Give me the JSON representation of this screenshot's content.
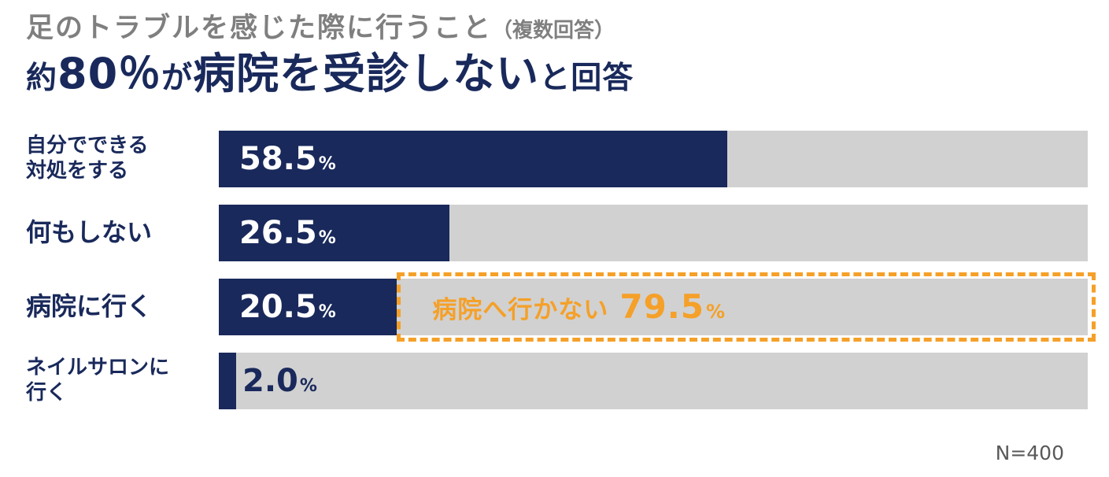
{
  "header": {
    "title": "足のトラブルを感じた際に行うこと",
    "title_note": "（複数回答）",
    "subtitle": {
      "part1": "約",
      "part2": "80％",
      "part3": "が",
      "part4": "病院を受診しない",
      "part5": "と回答"
    }
  },
  "chart_data": {
    "type": "bar",
    "orientation": "horizontal",
    "title": "足のトラブルを感じた際に行うこと（複数回答）",
    "subtitle": "約80％が病院を受診しないと回答",
    "categories": [
      "自分でできる\n対処をする",
      "何もしない",
      "病院に行く",
      "ネイルサロンに\n行く"
    ],
    "values": [
      58.5,
      26.5,
      20.5,
      2.0
    ],
    "value_labels": [
      "58.5",
      "26.5",
      "20.5",
      "2.0"
    ],
    "unit": "%",
    "xlim": [
      0,
      100
    ],
    "grid": false,
    "legend": false,
    "annotation": {
      "label": "病院へ行かない",
      "value_label": "79.5",
      "unit": "%",
      "attached_to_category": "病院に行く",
      "span": [
        20.5,
        100
      ]
    },
    "sample_size": "N=400",
    "colors": {
      "bar": "#19295B",
      "track": "#D1D1D1",
      "accent_orange": "#F5A028",
      "title_gray": "#7F7F7F",
      "navy_text": "#19295B"
    }
  }
}
